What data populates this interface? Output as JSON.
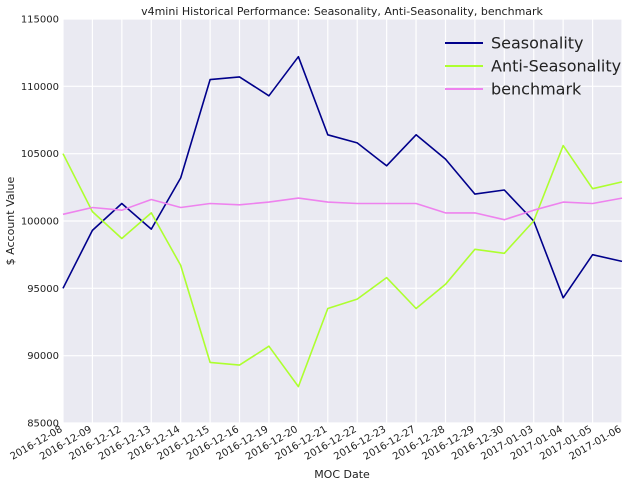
{
  "chart_data": {
    "type": "line",
    "title": "v4mini Historical Performance: Seasonality, Anti-Seasonality, benchmark",
    "xlabel": "MOC Date",
    "ylabel": "$ Account Value",
    "ylim": [
      85000,
      115000
    ],
    "yticks": [
      85000,
      90000,
      95000,
      100000,
      105000,
      110000,
      115000
    ],
    "grid": true,
    "legend_position": "top-right",
    "categories": [
      "2016-12-08",
      "2016-12-09",
      "2016-12-12",
      "2016-12-13",
      "2016-12-14",
      "2016-12-15",
      "2016-12-16",
      "2016-12-19",
      "2016-12-20",
      "2016-12-21",
      "2016-12-22",
      "2016-12-23",
      "2016-12-27",
      "2016-12-28",
      "2016-12-29",
      "2016-12-30",
      "2017-01-03",
      "2017-01-04",
      "2017-01-05",
      "2017-01-06"
    ],
    "series": [
      {
        "name": "Seasonality",
        "color": "#00008b",
        "values": [
          95000,
          99300,
          101300,
          99400,
          103200,
          110500,
          110700,
          109300,
          112200,
          106400,
          105800,
          104100,
          106400,
          104600,
          102000,
          102300,
          100000,
          94300,
          97500,
          97000
        ]
      },
      {
        "name": "Anti-Seasonality",
        "color": "#adff2f",
        "values": [
          105000,
          100700,
          98700,
          100600,
          96700,
          89500,
          89300,
          90700,
          87700,
          93500,
          94200,
          95800,
          93500,
          95300,
          97900,
          97600,
          100000,
          105600,
          102400,
          102900
        ]
      },
      {
        "name": "benchmark",
        "color": "#ee82ee",
        "values": [
          100500,
          101000,
          100800,
          101600,
          101000,
          101300,
          101200,
          101400,
          101700,
          101400,
          101300,
          101300,
          101300,
          100600,
          100600,
          100100,
          100800,
          101400,
          101300,
          101700
        ]
      }
    ]
  }
}
